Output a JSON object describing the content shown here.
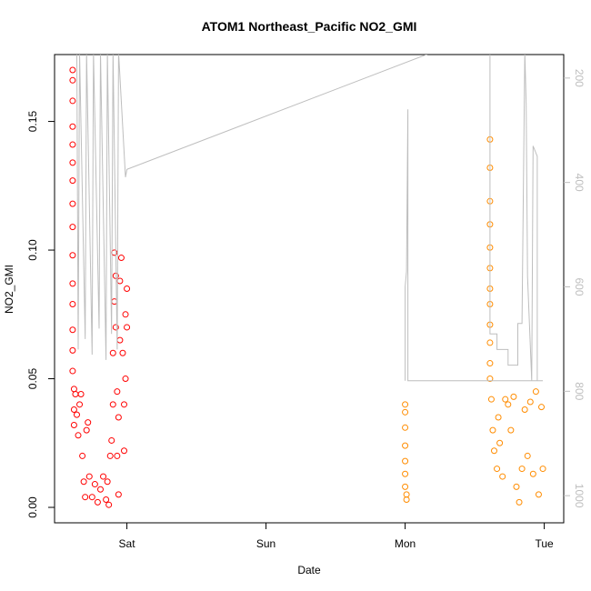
{
  "chart_data": {
    "type": "scatter",
    "title": "ATOM1 Northeast_Pacific NO2_GMI",
    "xlabel": "Date",
    "ylabel": "NO2_GMI",
    "xlim": [
      -0.52,
      3.14
    ],
    "xticks": [
      {
        "value": 0,
        "label": "Sat"
      },
      {
        "value": 1,
        "label": "Sun"
      },
      {
        "value": 2,
        "label": "Mon"
      },
      {
        "value": 3,
        "label": "Tue"
      }
    ],
    "ylim": [
      -0.006,
      0.176
    ],
    "yticks": [
      {
        "value": 0,
        "label": "0.00"
      },
      0.05,
      {
        "value": 0.1,
        "label": "0.10"
      },
      0.15
    ],
    "y2lim": [
      1052,
      155
    ],
    "y2ticks": [
      200,
      400,
      600,
      800,
      1000
    ],
    "series": [
      {
        "color": "#ff0000",
        "marker": "open-circle",
        "x": [
          -0.39,
          -0.39,
          -0.39,
          -0.39,
          -0.39,
          -0.39,
          -0.39,
          -0.39,
          -0.39,
          -0.39,
          -0.39,
          -0.39,
          -0.39,
          -0.39,
          -0.39,
          -0.38,
          -0.38,
          -0.38,
          -0.37,
          -0.36,
          -0.35,
          -0.34,
          -0.33,
          -0.32,
          -0.31,
          -0.3,
          -0.29,
          -0.28,
          -0.27,
          -0.25,
          -0.23,
          -0.21,
          -0.19,
          -0.17,
          -0.15,
          -0.14,
          -0.13,
          -0.12,
          -0.11,
          -0.1,
          -0.1,
          -0.09,
          -0.09,
          -0.08,
          -0.08,
          -0.07,
          -0.07,
          -0.06,
          -0.06,
          -0.05,
          -0.05,
          -0.04,
          -0.03,
          -0.02,
          -0.02,
          -0.01,
          -0.01,
          0.0,
          0.0
        ],
        "values": [
          0.17,
          0.166,
          0.158,
          0.148,
          0.141,
          0.134,
          0.127,
          0.118,
          0.109,
          0.098,
          0.087,
          0.079,
          0.069,
          0.061,
          0.053,
          0.046,
          0.038,
          0.032,
          0.044,
          0.036,
          0.028,
          0.04,
          0.044,
          0.02,
          0.01,
          0.004,
          0.03,
          0.033,
          0.012,
          0.004,
          0.009,
          0.002,
          0.007,
          0.012,
          0.003,
          0.01,
          0.001,
          0.02,
          0.026,
          0.04,
          0.06,
          0.08,
          0.099,
          0.09,
          0.07,
          0.045,
          0.02,
          0.005,
          0.035,
          0.065,
          0.088,
          0.097,
          0.06,
          0.04,
          0.022,
          0.05,
          0.075,
          0.085,
          0.07
        ]
      },
      {
        "color": "#ff8c00",
        "marker": "open-circle",
        "x": [
          2.0,
          2.0,
          2.0,
          2.0,
          2.0,
          2.0,
          2.0,
          2.01,
          2.01,
          2.61,
          2.61,
          2.61,
          2.61,
          2.61,
          2.61,
          2.61,
          2.61,
          2.61,
          2.61,
          2.61,
          2.61,
          2.62,
          2.63,
          2.64,
          2.66,
          2.67,
          2.68,
          2.7,
          2.72,
          2.74,
          2.76,
          2.78,
          2.8,
          2.82,
          2.84,
          2.86,
          2.88,
          2.9,
          2.92,
          2.94,
          2.96,
          2.98,
          2.99
        ],
        "values": [
          0.04,
          0.037,
          0.031,
          0.024,
          0.018,
          0.013,
          0.008,
          0.005,
          0.003,
          0.143,
          0.132,
          0.119,
          0.11,
          0.101,
          0.093,
          0.085,
          0.079,
          0.071,
          0.064,
          0.056,
          0.05,
          0.042,
          0.03,
          0.022,
          0.015,
          0.035,
          0.025,
          0.012,
          0.042,
          0.04,
          0.03,
          0.043,
          0.008,
          0.002,
          0.015,
          0.038,
          0.02,
          0.041,
          0.013,
          0.045,
          0.005,
          0.039,
          0.015
        ]
      },
      {
        "color": "#bebebe",
        "marker": "line",
        "axis": "y2",
        "x": [
          -0.36,
          -0.35,
          -0.34,
          -0.3,
          -0.29,
          -0.25,
          -0.24,
          -0.2,
          -0.19,
          -0.15,
          -0.14,
          -0.11,
          -0.1,
          -0.07,
          -0.06,
          -0.01,
          0.0,
          2.3,
          null,
          2.0,
          2.0,
          2.01,
          2.02,
          2.02,
          2.99,
          null,
          2.61,
          2.61,
          2.66,
          2.66,
          2.74,
          2.74,
          2.81,
          2.81,
          2.84,
          2.86,
          2.87,
          2.88,
          2.91,
          2.92,
          2.95,
          2.95
        ],
        "values": [
          150,
          720,
          150,
          700,
          150,
          730,
          150,
          680,
          150,
          740,
          150,
          690,
          150,
          720,
          150,
          390,
          375,
          140,
          null,
          780,
          600,
          570,
          260,
          780,
          780,
          null,
          150,
          690,
          690,
          720,
          720,
          750,
          750,
          670,
          670,
          150,
          250,
          580,
          780,
          330,
          350,
          780
        ]
      }
    ]
  }
}
